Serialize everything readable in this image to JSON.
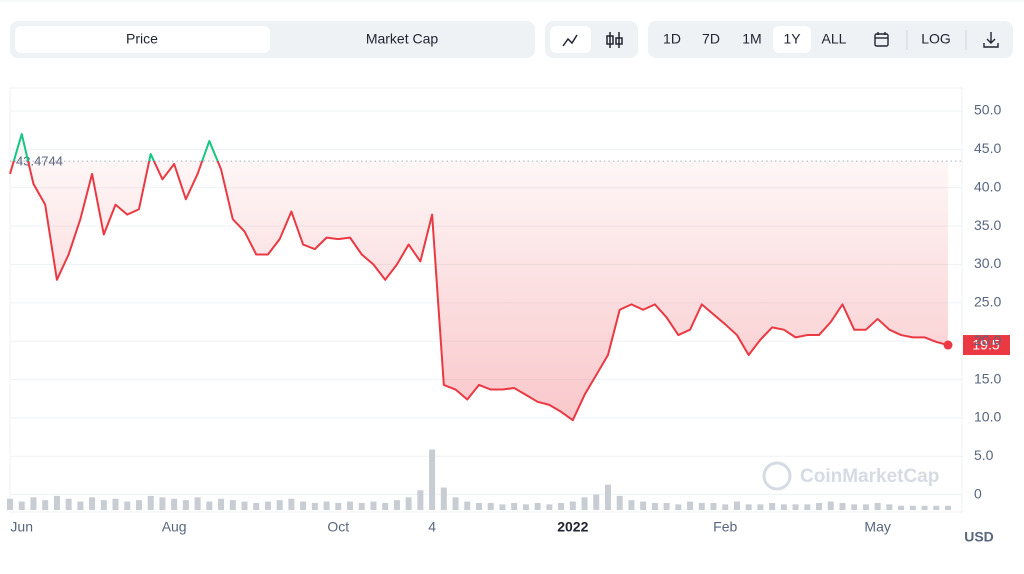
{
  "toolbar": {
    "tabs": [
      "Price",
      "Market Cap"
    ],
    "ranges": [
      "1D",
      "7D",
      "1M",
      "1Y",
      "ALL"
    ],
    "scale": "LOG"
  },
  "chart_data": {
    "type": "line",
    "watermark": "CoinMarketCap",
    "y_label": "USD",
    "categories": [
      null,
      "Jun",
      null,
      null,
      null,
      null,
      null,
      null,
      null,
      null,
      null,
      null,
      null,
      null,
      "Aug",
      null,
      null,
      null,
      null,
      null,
      null,
      null,
      null,
      null,
      null,
      null,
      null,
      null,
      "Oct",
      null,
      null,
      null,
      null,
      null,
      null,
      null,
      "4",
      null,
      null,
      null,
      null,
      null,
      null,
      null,
      null,
      null,
      null,
      null,
      "2022",
      null,
      null,
      null,
      null,
      null,
      null,
      null,
      null,
      null,
      null,
      null,
      null,
      "Feb",
      null,
      null,
      null,
      null,
      null,
      null,
      null,
      null,
      null,
      null,
      null,
      null,
      "May",
      null,
      null,
      null,
      null,
      null,
      null
    ],
    "series": [
      {
        "name": "Price",
        "up_color": "#16c784",
        "color": "#ea3943",
        "values": [
          41.8,
          47.0,
          40.5,
          37.8,
          28.0,
          31.3,
          35.9,
          41.8,
          33.9,
          37.8,
          36.5,
          37.2,
          44.4,
          41.1,
          43.1,
          38.5,
          41.8,
          46.1,
          42.4,
          35.9,
          34.3,
          31.3,
          31.3,
          33.3,
          36.9,
          32.6,
          32.0,
          33.5,
          33.3,
          33.5,
          31.3,
          30.0,
          28.0,
          30.0,
          32.6,
          30.4,
          36.5,
          14.3,
          13.7,
          12.4,
          14.3,
          13.7,
          13.7,
          13.9,
          13.0,
          12.1,
          11.7,
          10.8,
          9.7,
          13.0,
          15.6,
          18.2,
          24.1,
          24.8,
          24.1,
          24.8,
          23.1,
          20.8,
          21.5,
          24.8,
          23.5,
          22.2,
          20.8,
          18.2,
          20.2,
          21.8,
          21.5,
          20.5,
          20.8,
          20.8,
          22.5,
          24.8,
          21.5,
          21.5,
          22.9,
          21.5,
          20.8,
          20.5,
          20.5,
          19.9,
          19.5
        ]
      },
      {
        "name": "Volume",
        "axis": "y2",
        "color": "#c8ccd3",
        "values": [
          0.8,
          0.6,
          0.9,
          0.7,
          1.0,
          0.8,
          0.6,
          0.9,
          0.7,
          0.8,
          0.6,
          0.7,
          1.0,
          0.9,
          0.8,
          0.7,
          0.9,
          0.6,
          0.8,
          0.7,
          0.6,
          0.5,
          0.6,
          0.7,
          0.8,
          0.6,
          0.5,
          0.6,
          0.5,
          0.6,
          0.5,
          0.6,
          0.5,
          0.7,
          0.9,
          1.4,
          4.3,
          1.6,
          0.9,
          0.6,
          0.5,
          0.5,
          0.4,
          0.5,
          0.4,
          0.5,
          0.4,
          0.5,
          0.6,
          0.9,
          1.1,
          1.8,
          1.0,
          0.7,
          0.6,
          0.5,
          0.5,
          0.4,
          0.6,
          0.5,
          0.5,
          0.4,
          0.6,
          0.4,
          0.4,
          0.5,
          0.4,
          0.4,
          0.4,
          0.5,
          0.6,
          0.5,
          0.4,
          0.4,
          0.5,
          0.4,
          0.3,
          0.3,
          0.3,
          0.3,
          0.3
        ]
      }
    ],
    "reference_line": 43.4744,
    "ylim": [
      -2,
      53
    ],
    "yticks": [
      0,
      {
        "value": 5,
        "label": "5.0"
      },
      {
        "value": 10,
        "label": "10.0"
      },
      {
        "value": 15,
        "label": "15.0"
      },
      {
        "value": 20,
        "label": "20.0"
      },
      {
        "value": 25,
        "label": "25.0"
      },
      {
        "value": 30,
        "label": "30.0"
      },
      {
        "value": 35,
        "label": "35.0"
      },
      {
        "value": 40,
        "label": "40.0"
      },
      {
        "value": 45,
        "label": "45.0"
      },
      {
        "value": 50,
        "label": "50.0"
      }
    ],
    "y2lim": [
      0,
      30
    ],
    "grid": true
  }
}
